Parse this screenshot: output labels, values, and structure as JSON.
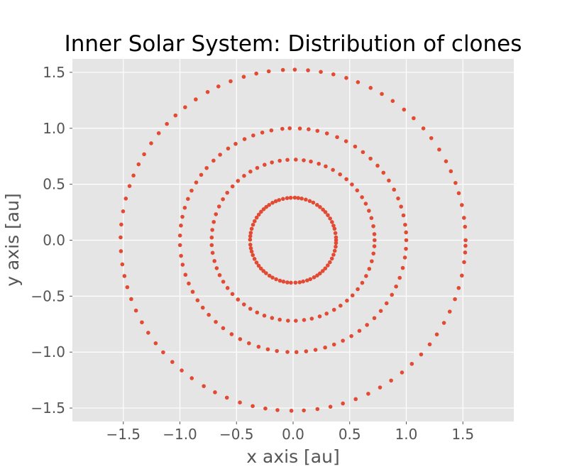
{
  "chart_data": {
    "type": "scatter",
    "title": "Inner Solar System: Distribution of clones",
    "xlabel": "x axis [au]",
    "ylabel": "y axis [au]",
    "xlim": [
      -1.95,
      1.95
    ],
    "ylim": [
      -1.62,
      1.62
    ],
    "xticks": [
      -1.5,
      -1.0,
      -0.5,
      0.0,
      0.5,
      1.0,
      1.5
    ],
    "xtick_labels": [
      "−1.5",
      "−1.0",
      "−0.5",
      "0.0",
      "0.5",
      "1.0",
      "1.5"
    ],
    "yticks": [
      1.5,
      1.0,
      0.5,
      0.0,
      -0.5,
      -1.0,
      -1.5
    ],
    "ytick_labels": [
      "1.5",
      "1.0",
      "0.5",
      "0.0",
      "−0.5",
      "−1.0",
      "−1.5"
    ],
    "grid": true,
    "background": "#e5e5e5",
    "marker_color": "#e24a33",
    "series": [
      {
        "points": [
          [
            0.38,
            0.0
          ],
          [
            0.379,
            0.025
          ],
          [
            0.374,
            0.063
          ],
          [
            0.366,
            0.102
          ],
          [
            0.357,
            0.13
          ],
          [
            0.344,
            0.162
          ],
          [
            0.327,
            0.194
          ],
          [
            0.307,
            0.224
          ],
          [
            0.285,
            0.251
          ],
          [
            0.264,
            0.273
          ],
          [
            0.238,
            0.296
          ],
          [
            0.212,
            0.315
          ],
          [
            0.178,
            0.336
          ],
          [
            0.147,
            0.35
          ],
          [
            0.112,
            0.363
          ],
          [
            0.076,
            0.372
          ],
          [
            0.045,
            0.377
          ],
          [
            0.015,
            0.38
          ],
          [
            -0.021,
            0.379
          ],
          [
            -0.053,
            0.376
          ],
          [
            -0.089,
            0.369
          ],
          [
            -0.124,
            0.359
          ],
          [
            -0.153,
            0.348
          ],
          [
            -0.182,
            0.334
          ],
          [
            -0.212,
            0.315
          ],
          [
            -0.237,
            0.297
          ],
          [
            -0.26,
            0.277
          ],
          [
            -0.283,
            0.254
          ],
          [
            -0.303,
            0.229
          ],
          [
            -0.322,
            0.202
          ],
          [
            -0.34,
            0.17
          ],
          [
            -0.354,
            0.138
          ],
          [
            -0.366,
            0.102
          ],
          [
            -0.374,
            0.066
          ],
          [
            -0.378,
            0.036
          ],
          [
            -0.38,
            0.005
          ],
          [
            -0.378,
            -0.04
          ],
          [
            -0.373,
            -0.072
          ],
          [
            -0.366,
            -0.101
          ],
          [
            -0.356,
            -0.133
          ],
          [
            -0.341,
            -0.167
          ],
          [
            -0.323,
            -0.2
          ],
          [
            -0.304,
            -0.228
          ],
          [
            -0.284,
            -0.253
          ],
          [
            -0.262,
            -0.275
          ],
          [
            -0.239,
            -0.295
          ],
          [
            -0.209,
            -0.317
          ],
          [
            -0.182,
            -0.334
          ],
          [
            -0.15,
            -0.349
          ],
          [
            -0.116,
            -0.362
          ],
          [
            -0.085,
            -0.37
          ],
          [
            -0.051,
            -0.377
          ],
          [
            -0.019,
            -0.38
          ],
          [
            0.021,
            -0.379
          ],
          [
            0.058,
            -0.376
          ],
          [
            0.089,
            -0.369
          ],
          [
            0.124,
            -0.359
          ],
          [
            0.152,
            -0.348
          ],
          [
            0.185,
            -0.332
          ],
          [
            0.213,
            -0.315
          ],
          [
            0.237,
            -0.297
          ],
          [
            0.262,
            -0.275
          ],
          [
            0.284,
            -0.252
          ],
          [
            0.306,
            -0.225
          ],
          [
            0.325,
            -0.197
          ],
          [
            0.343,
            -0.164
          ],
          [
            0.357,
            -0.13
          ],
          [
            0.368,
            -0.095
          ],
          [
            0.376,
            -0.058
          ],
          [
            0.379,
            -0.025
          ],
          [
            0.72,
            0.0
          ],
          [
            0.718,
            0.054
          ],
          [
            0.709,
            0.125
          ],
          [
            0.692,
            0.198
          ],
          [
            0.67,
            0.263
          ],
          [
            0.642,
            0.326
          ],
          [
            0.609,
            0.384
          ],
          [
            0.566,
            0.445
          ],
          [
            0.52,
            0.498
          ],
          [
            0.471,
            0.545
          ],
          [
            0.415,
            0.588
          ],
          [
            0.352,
            0.628
          ],
          [
            0.288,
            0.66
          ],
          [
            0.227,
            0.683
          ],
          [
            0.157,
            0.703
          ],
          [
            0.094,
            0.714
          ],
          [
            0.024,
            0.72
          ],
          [
            -0.05,
            0.718
          ],
          [
            -0.118,
            0.71
          ],
          [
            -0.187,
            0.695
          ],
          [
            -0.252,
            0.674
          ],
          [
            -0.317,
            0.646
          ],
          [
            -0.377,
            0.613
          ],
          [
            -0.433,
            0.575
          ],
          [
            -0.487,
            0.53
          ],
          [
            -0.535,
            0.481
          ],
          [
            -0.582,
            0.424
          ],
          [
            -0.62,
            0.366
          ],
          [
            -0.654,
            0.301
          ],
          [
            -0.682,
            0.232
          ],
          [
            -0.701,
            0.163
          ],
          [
            -0.714,
            0.092
          ],
          [
            -0.719,
            0.024
          ],
          [
            -0.719,
            -0.044
          ],
          [
            -0.711,
            -0.113
          ],
          [
            -0.695,
            -0.186
          ],
          [
            -0.675,
            -0.25
          ],
          [
            -0.649,
            -0.312
          ],
          [
            -0.617,
            -0.371
          ],
          [
            -0.579,
            -0.427
          ],
          [
            -0.536,
            -0.481
          ],
          [
            -0.487,
            -0.53
          ],
          [
            -0.434,
            -0.574
          ],
          [
            -0.378,
            -0.613
          ],
          [
            -0.318,
            -0.646
          ],
          [
            -0.254,
            -0.674
          ],
          [
            -0.186,
            -0.695
          ],
          [
            -0.118,
            -0.71
          ],
          [
            -0.045,
            -0.719
          ],
          [
            0.024,
            -0.72
          ],
          [
            0.097,
            -0.713
          ],
          [
            0.165,
            -0.701
          ],
          [
            0.235,
            -0.681
          ],
          [
            0.296,
            -0.656
          ],
          [
            0.362,
            -0.622
          ],
          [
            0.419,
            -0.585
          ],
          [
            0.476,
            -0.54
          ],
          [
            0.525,
            -0.493
          ],
          [
            0.571,
            -0.438
          ],
          [
            0.611,
            -0.381
          ],
          [
            0.645,
            -0.32
          ],
          [
            0.673,
            -0.256
          ],
          [
            0.695,
            -0.188
          ],
          [
            0.71,
            -0.119
          ],
          [
            0.718,
            -0.054
          ],
          [
            1.0,
            0.0
          ],
          [
            0.998,
            0.07
          ],
          [
            0.99,
            0.138
          ],
          [
            0.975,
            0.222
          ],
          [
            0.954,
            0.3
          ],
          [
            0.928,
            0.373
          ],
          [
            0.892,
            0.452
          ],
          [
            0.846,
            0.533
          ],
          [
            0.798,
            0.603
          ],
          [
            0.746,
            0.666
          ],
          [
            0.684,
            0.729
          ],
          [
            0.617,
            0.787
          ],
          [
            0.548,
            0.837
          ],
          [
            0.468,
            0.884
          ],
          [
            0.389,
            0.921
          ],
          [
            0.299,
            0.954
          ],
          [
            0.215,
            0.977
          ],
          [
            0.137,
            0.991
          ],
          [
            0.06,
            0.998
          ],
          [
            -0.03,
            1.0
          ],
          [
            -0.095,
            0.995
          ],
          [
            -0.192,
            0.981
          ],
          [
            -0.272,
            0.962
          ],
          [
            -0.352,
            0.936
          ],
          [
            -0.429,
            0.903
          ],
          [
            -0.508,
            0.861
          ],
          [
            -0.574,
            0.819
          ],
          [
            -0.645,
            0.764
          ],
          [
            -0.703,
            0.711
          ],
          [
            -0.764,
            0.645
          ],
          [
            -0.812,
            0.584
          ],
          [
            -0.856,
            0.516
          ],
          [
            -0.897,
            0.443
          ],
          [
            -0.929,
            0.369
          ],
          [
            -0.957,
            0.29
          ],
          [
            -0.978,
            0.209
          ],
          [
            -0.991,
            0.131
          ],
          [
            -0.999,
            0.042
          ],
          [
            -0.999,
            -0.044
          ],
          [
            -0.99,
            -0.14
          ],
          [
            -0.976,
            -0.219
          ],
          [
            -0.951,
            -0.309
          ],
          [
            -0.922,
            -0.387
          ],
          [
            -0.887,
            -0.461
          ],
          [
            -0.844,
            -0.537
          ],
          [
            -0.798,
            -0.603
          ],
          [
            -0.745,
            -0.667
          ],
          [
            -0.683,
            -0.73
          ],
          [
            -0.618,
            -0.786
          ],
          [
            -0.543,
            -0.84
          ],
          [
            -0.468,
            -0.884
          ],
          [
            -0.39,
            -0.921
          ],
          [
            -0.305,
            -0.952
          ],
          [
            -0.223,
            -0.975
          ],
          [
            -0.143,
            -0.99
          ],
          [
            -0.05,
            -0.999
          ],
          [
            0.03,
            -1.0
          ],
          [
            0.115,
            -0.993
          ],
          [
            0.198,
            -0.98
          ],
          [
            0.283,
            -0.959
          ],
          [
            0.362,
            -0.932
          ],
          [
            0.44,
            -0.898
          ],
          [
            0.515,
            -0.857
          ],
          [
            0.586,
            -0.81
          ],
          [
            0.653,
            -0.757
          ],
          [
            0.718,
            -0.696
          ],
          [
            0.775,
            -0.632
          ],
          [
            0.826,
            -0.564
          ],
          [
            0.873,
            -0.488
          ],
          [
            0.91,
            -0.414
          ],
          [
            0.942,
            -0.336
          ],
          [
            0.969,
            -0.248
          ],
          [
            0.988,
            -0.155
          ],
          [
            0.997,
            -0.077
          ],
          [
            1.524,
            0.0
          ],
          [
            1.519,
            0.12
          ],
          [
            1.51,
            0.2
          ],
          [
            1.491,
            0.314
          ],
          [
            1.464,
            0.42
          ],
          [
            1.435,
            0.512
          ],
          [
            1.394,
            0.616
          ],
          [
            1.351,
            0.705
          ],
          [
            1.291,
            0.81
          ],
          [
            1.221,
            0.912
          ],
          [
            1.151,
            0.999
          ],
          [
            1.065,
            1.09
          ],
          [
            0.98,
            1.167
          ],
          [
            0.88,
            1.244
          ],
          [
            0.784,
            1.307
          ],
          [
            0.685,
            1.361
          ],
          [
            0.573,
            1.412
          ],
          [
            0.47,
            1.45
          ],
          [
            0.356,
            1.482
          ],
          [
            0.245,
            1.504
          ],
          [
            0.132,
            1.518
          ],
          [
            0.015,
            1.524
          ],
          [
            -0.09,
            1.521
          ],
          [
            -0.215,
            1.509
          ],
          [
            -0.325,
            1.489
          ],
          [
            -0.436,
            1.46
          ],
          [
            -0.552,
            1.42
          ],
          [
            -0.66,
            1.374
          ],
          [
            -0.755,
            1.324
          ],
          [
            -0.86,
            1.258
          ],
          [
            -0.954,
            1.188
          ],
          [
            -1.039,
            1.115
          ],
          [
            -1.115,
            1.039
          ],
          [
            -1.187,
            0.956
          ],
          [
            -1.254,
            0.866
          ],
          [
            -1.316,
            0.768
          ],
          [
            -1.365,
            0.678
          ],
          [
            -1.41,
            0.578
          ],
          [
            -1.445,
            0.484
          ],
          [
            -1.478,
            0.372
          ],
          [
            -1.502,
            0.258
          ],
          [
            -1.518,
            0.14
          ],
          [
            -1.524,
            0.025
          ],
          [
            -1.521,
            -0.098
          ],
          [
            -1.509,
            -0.216
          ],
          [
            -1.49,
            -0.32
          ],
          [
            -1.465,
            -0.42
          ],
          [
            -1.43,
            -0.526
          ],
          [
            -1.388,
            -0.629
          ],
          [
            -1.336,
            -0.734
          ],
          [
            -1.28,
            -0.827
          ],
          [
            -1.214,
            -0.921
          ],
          [
            -1.148,
            -1.002
          ],
          [
            -1.067,
            -1.088
          ],
          [
            -0.984,
            -1.164
          ],
          [
            -0.895,
            -1.233
          ],
          [
            -0.789,
            -1.304
          ],
          [
            -0.69,
            -1.359
          ],
          [
            -0.585,
            -1.407
          ],
          [
            -0.47,
            -1.45
          ],
          [
            -0.357,
            -1.482
          ],
          [
            -0.245,
            -1.504
          ],
          [
            -0.138,
            -1.518
          ],
          [
            -0.015,
            -1.524
          ],
          [
            0.095,
            -1.521
          ],
          [
            0.215,
            -1.509
          ],
          [
            0.33,
            -1.488
          ],
          [
            0.44,
            -1.459
          ],
          [
            0.553,
            -1.42
          ],
          [
            0.664,
            -1.372
          ],
          [
            0.768,
            -1.316
          ],
          [
            0.866,
            -1.254
          ],
          [
            0.962,
            -1.182
          ],
          [
            1.049,
            -1.105
          ],
          [
            1.131,
            -1.021
          ],
          [
            1.207,
            -0.931
          ],
          [
            1.27,
            -0.842
          ],
          [
            1.333,
            -0.739
          ],
          [
            1.384,
            -0.638
          ],
          [
            1.43,
            -0.527
          ],
          [
            1.463,
            -0.427
          ],
          [
            1.491,
            -0.316
          ],
          [
            1.511,
            -0.196
          ],
          [
            1.52,
            -0.11
          ],
          [
            1.523,
            -0.05
          ]
        ]
      }
    ]
  }
}
